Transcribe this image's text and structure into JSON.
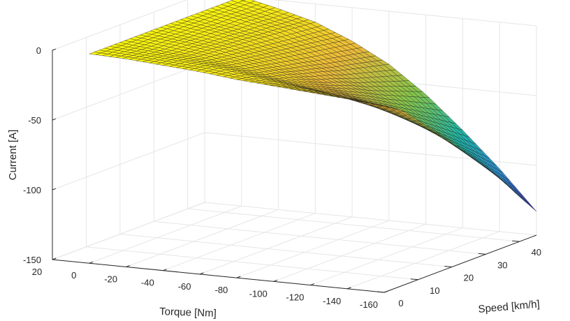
{
  "chart_data": {
    "type": "surface",
    "x_axis": {
      "label": "Torque [Nm]",
      "range": [
        -160,
        20
      ],
      "ticks": [
        20,
        0,
        -20,
        -40,
        -60,
        -80,
        -100,
        -120,
        -140,
        -160
      ]
    },
    "y_axis": {
      "label": "Speed [km/h]",
      "range": [
        0,
        45
      ],
      "ticks": [
        0,
        10,
        20,
        30,
        40
      ]
    },
    "z_axis": {
      "label": "Current [A]",
      "range": [
        -150,
        0
      ],
      "ticks": [
        0,
        -50,
        -100,
        -150
      ]
    },
    "grid": true,
    "colormap": [
      "#3e26a8",
      "#2f8fd5",
      "#1fb7a8",
      "#86c54b",
      "#ecba3a",
      "#f9f50f"
    ],
    "surface": {
      "torque": [
        0,
        -20,
        -40,
        -60,
        -80,
        -100,
        -120,
        -140,
        -160
      ],
      "speed": [
        0,
        5,
        10,
        15,
        20,
        25,
        30,
        35,
        40,
        45
      ],
      "current": [
        [
          0,
          -1,
          -3,
          -5,
          -8,
          -10,
          -12,
          -14,
          -16
        ],
        [
          0,
          -2,
          -4,
          -6,
          -10,
          -14,
          -17,
          -20,
          -24
        ],
        [
          0,
          -3,
          -6,
          -10,
          -15,
          -20,
          -25,
          -30,
          -36
        ],
        [
          0,
          -3,
          -7,
          -12,
          -18,
          -25,
          -32,
          -40,
          -48
        ],
        [
          0,
          -4,
          -8,
          -14,
          -22,
          -31,
          -40,
          -50,
          -60
        ],
        [
          0,
          -4,
          -9,
          -16,
          -25,
          -36,
          -48,
          -60,
          -74
        ],
        [
          0,
          -5,
          -10,
          -18,
          -29,
          -42,
          -56,
          -72,
          -88
        ],
        [
          0,
          -5,
          -11,
          -20,
          -32,
          -47,
          -64,
          -83,
          -102
        ],
        [
          0,
          -6,
          -12,
          -22,
          -35,
          -52,
          -72,
          -94,
          -118
        ],
        [
          0,
          -6,
          -13,
          -24,
          -38,
          -57,
          -80,
          -105,
          -133
        ]
      ]
    }
  }
}
